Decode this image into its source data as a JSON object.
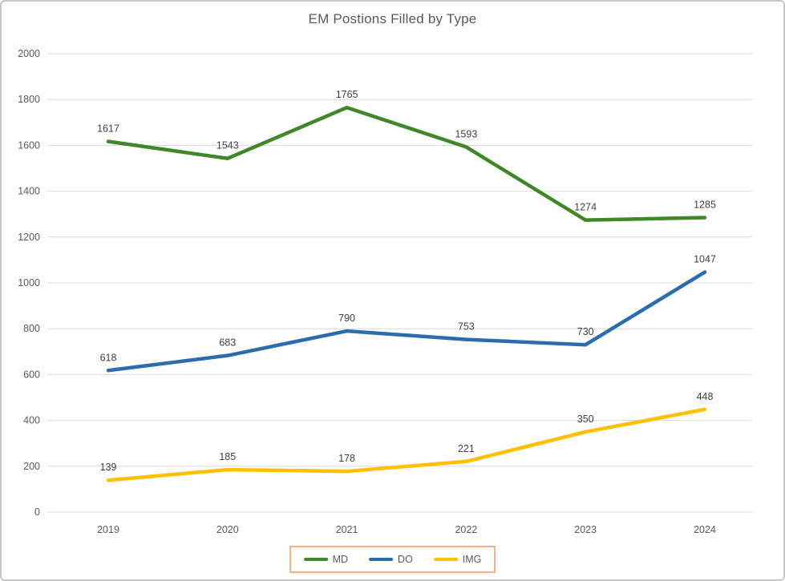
{
  "chart_data": {
    "type": "line",
    "title": "EM Postions Filled by Type",
    "categories": [
      "2019",
      "2020",
      "2021",
      "2022",
      "2023",
      "2024"
    ],
    "series": [
      {
        "name": "MD",
        "color": "#3F8727",
        "values": [
          1617,
          1543,
          1765,
          1593,
          1274,
          1285
        ]
      },
      {
        "name": "DO",
        "color": "#2A6CAC",
        "values": [
          618,
          683,
          790,
          753,
          730,
          1047
        ]
      },
      {
        "name": "IMG",
        "color": "#FFC000",
        "values": [
          139,
          185,
          178,
          221,
          350,
          448
        ]
      }
    ],
    "ylim": [
      0,
      2000
    ],
    "ytick_step": 200,
    "grid": true,
    "data_labels": true,
    "legend_position": "bottom"
  },
  "legend": {
    "border_color": "#F4B183"
  },
  "styles": {
    "title_color": "#595959",
    "tick_color": "#595959",
    "data_label_color": "#404040",
    "gridline_color": "#D9D9D9",
    "background": "#ffffff"
  }
}
